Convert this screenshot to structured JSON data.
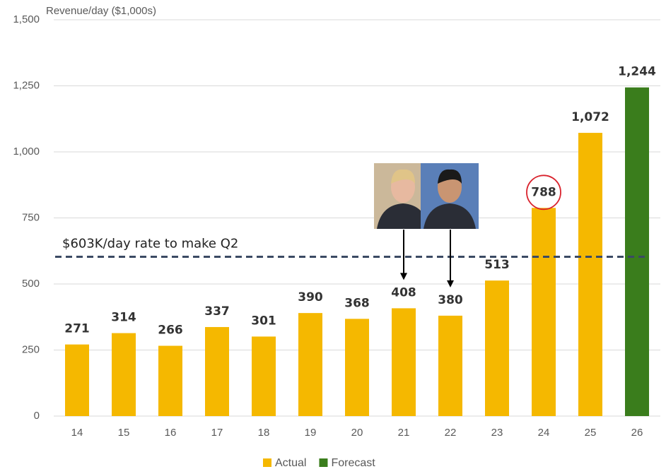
{
  "chart_data": {
    "type": "bar",
    "y_axis_label": "Revenue/day ($1,000s)",
    "categories": [
      "14",
      "15",
      "16",
      "17",
      "18",
      "19",
      "20",
      "21",
      "22",
      "23",
      "24",
      "25",
      "26"
    ],
    "series": [
      {
        "name": "Actual",
        "color": "#f5b800",
        "values": [
          271,
          314,
          266,
          337,
          301,
          390,
          368,
          408,
          380,
          513,
          788,
          1072,
          null
        ],
        "value_labels": [
          "271",
          "314",
          "266",
          "337",
          "301",
          "390",
          "368",
          "408",
          "380",
          "513",
          "788",
          "1,072",
          null
        ]
      },
      {
        "name": "Forecast",
        "color": "#3a7d1c",
        "values": [
          null,
          null,
          null,
          null,
          null,
          null,
          null,
          null,
          null,
          null,
          null,
          null,
          1244
        ],
        "value_labels": [
          null,
          null,
          null,
          null,
          null,
          null,
          null,
          null,
          null,
          null,
          null,
          null,
          "1,244"
        ]
      }
    ],
    "ylim": [
      0,
      1500
    ],
    "yticks": [
      0,
      250,
      500,
      750,
      {
        "value": 1000,
        "label": "1,000"
      },
      {
        "value": 1250,
        "label": "1,250"
      },
      {
        "value": 1500,
        "label": "1,500"
      }
    ],
    "grid": true,
    "legend": "bottom",
    "reference_line": {
      "value": 603,
      "label": "$603K/day rate to make Q2",
      "color": "#3b4a63"
    },
    "highlight_category": "24",
    "highlight_color": "#d9232d",
    "arrow_categories": [
      "21",
      "22"
    ]
  }
}
